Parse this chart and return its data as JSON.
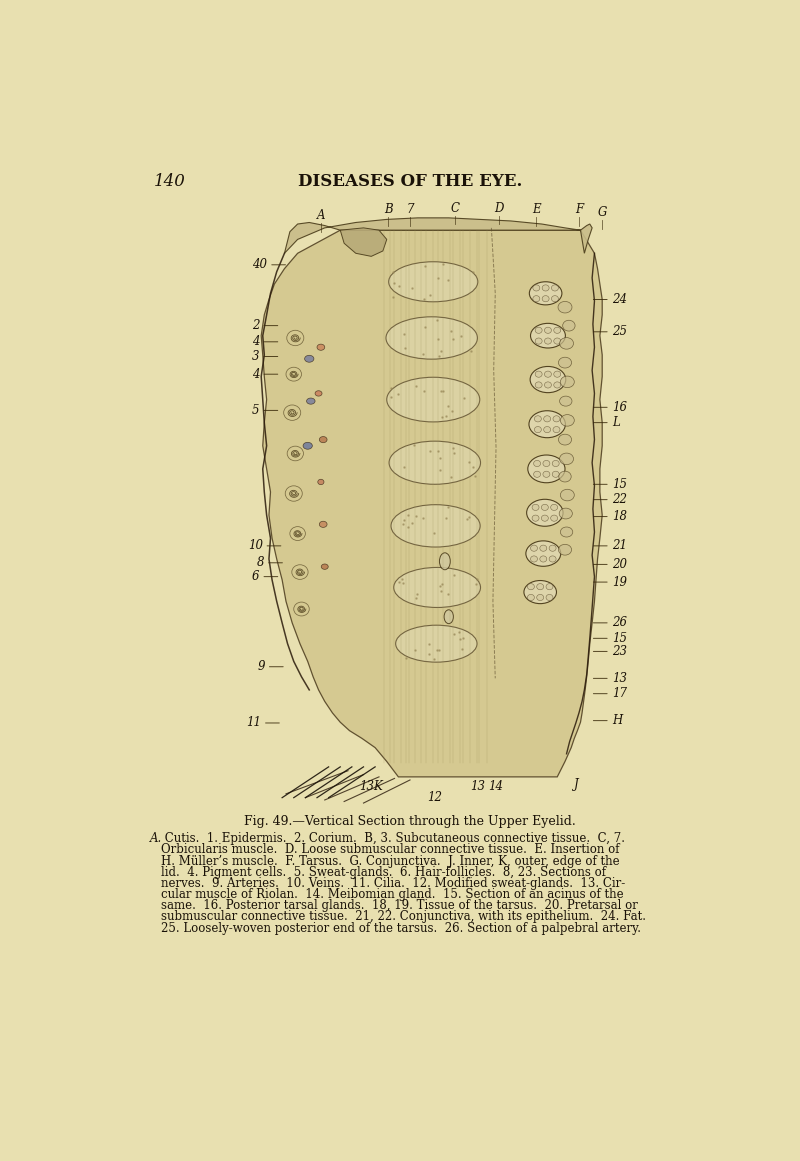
{
  "page_background": "#e8e0b0",
  "page_number": "140",
  "page_header": "DISEASES OF THE EYE.",
  "fig_caption_title": "Fig. 49.—Vertical Section through the Upper Eyelid.",
  "fig_caption_body_line1": "A. Cutis.  1. Epidermis.  2. Corium.  B, 3. Subcutaneous connective tissue.  C, 7.",
  "fig_caption_body_line2": "Orbicularis muscle.  D. Loose submuscular connective tissue.  E. Insertion of",
  "fig_caption_body_line3": "H. Müller’s muscle.  F. Tarsus.  G. Conjunctiva.  J. Inner, K, outer, edge of the",
  "fig_caption_body_line4": "lid.  4. Pigment cells.  5. Sweat-glands.  6. Hair-follicles.  8, 23. Sections of",
  "fig_caption_body_line5": "nerves.  9. Arteries.  10. Veins.  11. Cilia.  12. Modified sweat-glands.  13. Cir-",
  "fig_caption_body_line6": "cular muscle of Riolan.  14. Meibomian gland.  15. Section of an acinus of the",
  "fig_caption_body_line7": "same.  16. Posterior tarsal glands.  18, 19. Tissue of the tarsus.  20. Pretarsal or",
  "fig_caption_body_line8": "submuscular connective tissue.  21, 22. Conjunctiva, with its epithelium.  24. Fat.",
  "fig_caption_body_line9": "25. Loosely-woven posterior end of the tarsus.  26. Section of a palpebral artery.",
  "tissue_color": "#d6ca98",
  "tissue_edge": "#5a4a2a",
  "text_color": "#1a1208",
  "line_color": "#3a2a0a",
  "bg_color": "#e8e0b0"
}
